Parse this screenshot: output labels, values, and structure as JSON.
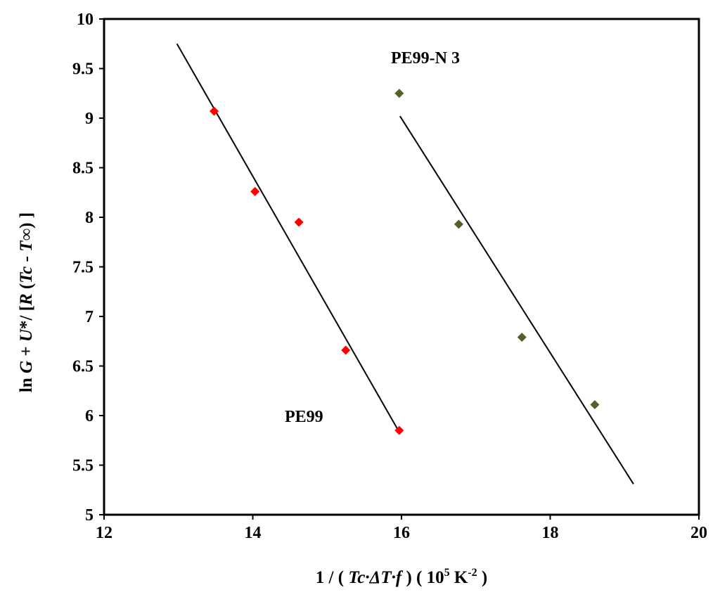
{
  "chart_data": {
    "type": "scatter",
    "xlim": [
      12,
      20
    ],
    "ylim": [
      5,
      10
    ],
    "x_ticks": [
      12,
      14,
      16,
      18,
      20
    ],
    "y_ticks": [
      5,
      5.5,
      6,
      6.5,
      7,
      7.5,
      8,
      8.5,
      9,
      9.5,
      10
    ],
    "x_tick_labels": [
      "12",
      "14",
      "16",
      "18",
      "20"
    ],
    "y_tick_labels": [
      "5",
      "5.5",
      "6",
      "6.5",
      "7",
      "7.5",
      "8",
      "8.5",
      "9",
      "9.5",
      "10"
    ],
    "xlabel": {
      "prefix": "1 / ( ",
      "tc": "Tc·",
      "delta": "ΔT",
      "dot_f": "·f",
      "middle": " ) ( 10",
      "exp": "5",
      "unit": " K",
      "unit_exp": "-2",
      "suffix": " )"
    },
    "ylabel": {
      "ln": "ln ",
      "g": "G",
      "plus": " + ",
      "u": "U",
      "after_u": "*/ [",
      "r": "R",
      "open": " (",
      "tc": "Tc",
      "minus": " - ",
      "tinf": "T∞",
      "close": ") ]"
    },
    "grid": false,
    "series": [
      {
        "name": "PE99",
        "color": "#ff0000",
        "marker": "diamond",
        "points": [
          [
            13.48,
            9.07
          ],
          [
            14.03,
            8.26
          ],
          [
            14.62,
            7.95
          ],
          [
            15.25,
            6.66
          ],
          [
            15.97,
            5.85
          ]
        ],
        "fit": [
          [
            12.98,
            9.75
          ],
          [
            15.95,
            5.86
          ]
        ]
      },
      {
        "name": "PE99-N 3",
        "color": "#4f6228",
        "marker": "diamond",
        "points": [
          [
            15.97,
            9.25
          ],
          [
            16.77,
            7.93
          ],
          [
            17.62,
            6.79
          ],
          [
            18.6,
            6.11
          ]
        ],
        "fit": [
          [
            15.98,
            9.02
          ],
          [
            19.12,
            5.31
          ]
        ]
      }
    ]
  }
}
